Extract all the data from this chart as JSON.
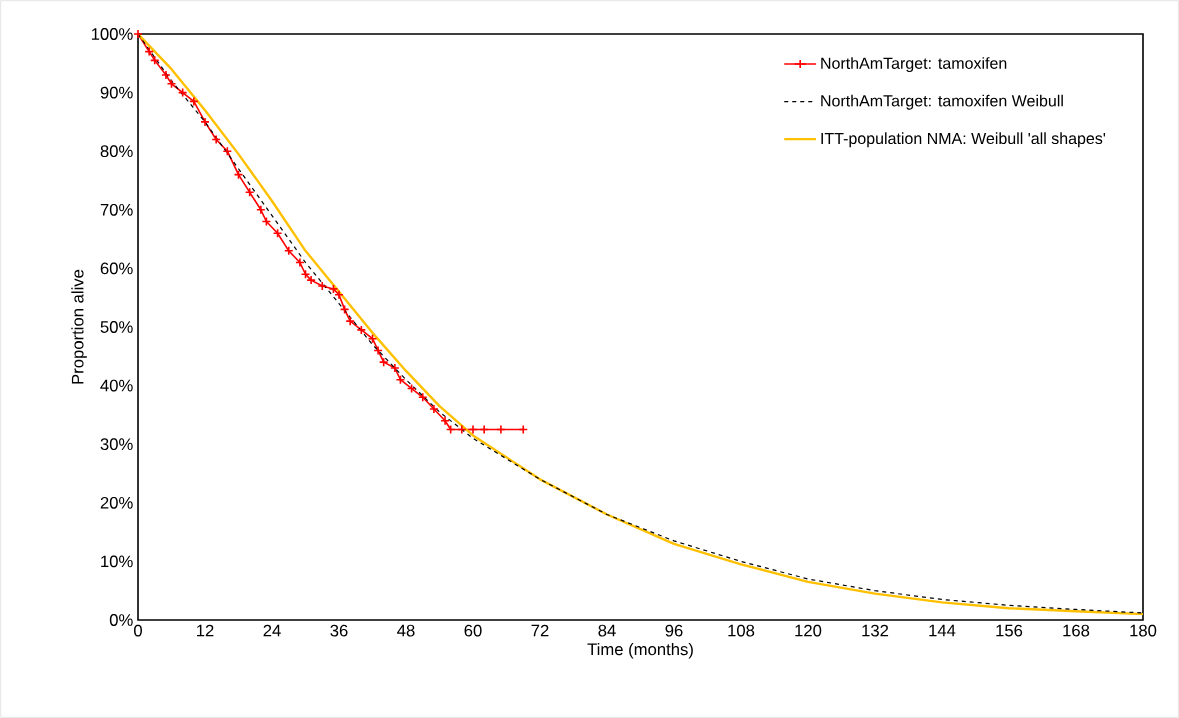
{
  "chart_data": {
    "type": "line",
    "xlabel": "Time (months)",
    "ylabel": "Proportion alive",
    "xlim": [
      0,
      180
    ],
    "xticks": [
      0,
      12,
      24,
      36,
      48,
      60,
      72,
      84,
      96,
      108,
      120,
      132,
      144,
      156,
      168,
      180
    ],
    "ylim": [
      0,
      100
    ],
    "yticks": [
      {
        "value": 0,
        "label": "0%"
      },
      {
        "value": 10,
        "label": "10%"
      },
      {
        "value": 20,
        "label": "20%"
      },
      {
        "value": 30,
        "label": "30%"
      },
      {
        "value": 40,
        "label": "40%"
      },
      {
        "value": 50,
        "label": "50%"
      },
      {
        "value": 60,
        "label": "60%"
      },
      {
        "value": 70,
        "label": "70%"
      },
      {
        "value": 80,
        "label": "80%"
      },
      {
        "value": 90,
        "label": "90%"
      },
      {
        "value": 100,
        "label": "100%"
      }
    ],
    "grid": false,
    "legend": "top right",
    "series": [
      {
        "name": "NorthAmTarget: tamoxifen",
        "color": "#ff0000",
        "line_style": "solid",
        "marker": "cross",
        "x": [
          0,
          2,
          3,
          5,
          6,
          8,
          10,
          12,
          14,
          16,
          18,
          20,
          22,
          23,
          25,
          27,
          29,
          30,
          31,
          33,
          35,
          36,
          37,
          38,
          40,
          42,
          43,
          44,
          46,
          47,
          49,
          51,
          53,
          55,
          56,
          58,
          60,
          62,
          65,
          69
        ],
        "values": [
          100,
          97,
          95.5,
          93,
          91.5,
          90,
          88.5,
          85,
          82,
          80,
          76,
          73,
          70,
          68,
          66,
          63,
          61,
          59,
          58,
          57,
          56.5,
          55.5,
          53,
          51,
          49.5,
          48,
          46,
          44,
          43,
          41,
          39.5,
          38,
          36,
          34,
          32.5,
          32.5,
          32.5,
          32.5,
          32.5,
          32.5
        ]
      },
      {
        "name": "NorthAmTarget: tamoxifen Weibull",
        "color": "#000000",
        "line_style": "dashed",
        "marker": "none",
        "x": [
          0,
          6,
          12,
          18,
          24,
          30,
          36,
          42,
          48,
          54,
          60,
          72,
          84,
          96,
          108,
          120,
          132,
          144,
          156,
          168,
          180
        ],
        "values": [
          100,
          92,
          85,
          77,
          69,
          61,
          54,
          47,
          41,
          35.5,
          31,
          24,
          18,
          13.5,
          10,
          7,
          5,
          3.5,
          2.5,
          1.8,
          1.2
        ]
      },
      {
        "name": "ITT-population NMA: Weibull 'all shapes'",
        "color": "#ffc000",
        "line_style": "solid",
        "marker": "none",
        "x": [
          0,
          6,
          12,
          18,
          24,
          30,
          36,
          42,
          48,
          54,
          60,
          72,
          84,
          96,
          108,
          120,
          132,
          144,
          156,
          168,
          180
        ],
        "values": [
          100,
          94,
          87,
          79.5,
          71.5,
          63,
          56,
          49,
          42.5,
          36.5,
          31.5,
          24,
          18,
          13,
          9.5,
          6.5,
          4.5,
          3,
          2,
          1.5,
          1
        ]
      }
    ]
  }
}
